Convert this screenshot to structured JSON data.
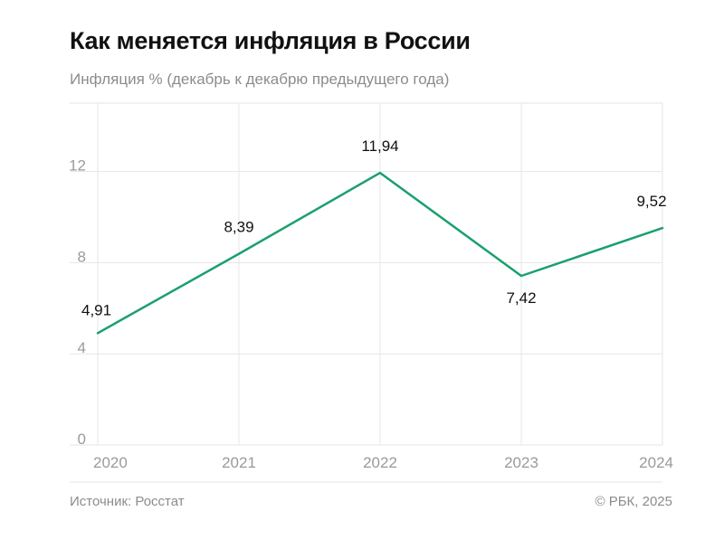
{
  "header": {
    "title": "Как меняется инфляция в России",
    "subtitle": "Инфляция % (декабрь к декабрю предыдущего года)"
  },
  "footer": {
    "source": "Источник: Росстат",
    "copyright": "© РБК, 2025"
  },
  "colors": {
    "line": "#1aa06d"
  },
  "chart_data": {
    "type": "line",
    "title": "Как меняется инфляция в России",
    "subtitle": "Инфляция % (декабрь к декабрю предыдущего года)",
    "categories": [
      "2020",
      "2021",
      "2022",
      "2023",
      "2024"
    ],
    "series": [
      {
        "values": [
          4.91,
          8.39,
          11.94,
          7.42,
          9.52
        ],
        "labels": [
          "4,91",
          "8,39",
          "11,94",
          "7,42",
          "9,52"
        ]
      }
    ],
    "yticks": [
      "0",
      "4",
      "8",
      "12"
    ],
    "ytick_values": [
      0,
      4,
      8,
      12
    ],
    "ylim": [
      0,
      15
    ],
    "grid": true,
    "legend": "none"
  }
}
